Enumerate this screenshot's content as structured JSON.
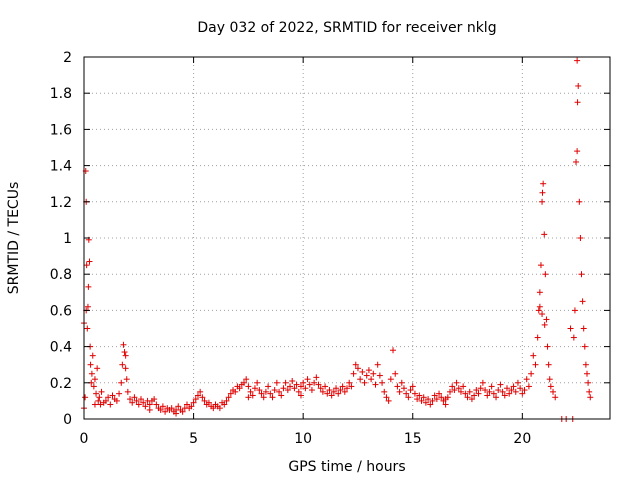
{
  "chart_data": {
    "type": "scatter",
    "title": "Day 032 of 2022, SRMTID for receiver nklg",
    "xlabel": "GPS time / hours",
    "ylabel": "SRMTID / TECUs",
    "xlim": [
      0,
      24
    ],
    "ylim": [
      0,
      2
    ],
    "xticks": [
      0,
      5,
      10,
      15,
      20
    ],
    "xtick_labels": [
      "0",
      "5",
      "10",
      "15",
      "20"
    ],
    "yticks": [
      0,
      0.2,
      0.4,
      0.6,
      0.8,
      1,
      1.2,
      1.4,
      1.6,
      1.8,
      2
    ],
    "ytick_labels": [
      "0",
      "0.2",
      "0.4",
      "0.6",
      "0.8",
      "1",
      "1.2",
      "1.4",
      "1.6",
      "1.8",
      "2"
    ],
    "grid": true,
    "marker": "+",
    "color": "#e00000",
    "series": [
      {
        "name": "SRMTID",
        "points": [
          [
            0.0,
            0.06
          ],
          [
            0.05,
            0.12
          ],
          [
            0.08,
            1.37
          ],
          [
            0.1,
            1.2
          ],
          [
            0.12,
            0.85
          ],
          [
            0.15,
            0.5
          ],
          [
            0.18,
            0.62
          ],
          [
            0.2,
            0.73
          ],
          [
            0.22,
            0.99
          ],
          [
            0.25,
            0.87
          ],
          [
            0.28,
            0.4
          ],
          [
            0.3,
            0.3
          ],
          [
            0.33,
            0.2
          ],
          [
            0.36,
            0.25
          ],
          [
            0.4,
            0.35
          ],
          [
            0.45,
            0.18
          ],
          [
            0.5,
            0.22
          ],
          [
            0.55,
            0.14
          ],
          [
            0.6,
            0.28
          ],
          [
            0.65,
            0.1
          ],
          [
            0.7,
            0.12
          ],
          [
            0.75,
            0.08
          ],
          [
            0.8,
            0.15
          ],
          [
            0.9,
            0.09
          ],
          [
            1.0,
            0.1
          ],
          [
            1.1,
            0.12
          ],
          [
            1.2,
            0.08
          ],
          [
            1.3,
            0.13
          ],
          [
            1.4,
            0.11
          ],
          [
            1.5,
            0.1
          ],
          [
            1.6,
            0.14
          ],
          [
            1.7,
            0.2
          ],
          [
            1.75,
            0.3
          ],
          [
            1.8,
            0.41
          ],
          [
            1.85,
            0.37
          ],
          [
            1.9,
            0.28
          ],
          [
            1.95,
            0.22
          ],
          [
            2.0,
            0.15
          ],
          [
            2.1,
            0.11
          ],
          [
            2.2,
            0.09
          ],
          [
            2.3,
            0.12
          ],
          [
            2.4,
            0.1
          ],
          [
            2.5,
            0.08
          ],
          [
            2.6,
            0.11
          ],
          [
            2.7,
            0.09
          ],
          [
            2.8,
            0.07
          ],
          [
            2.9,
            0.1
          ],
          [
            3.0,
            0.08
          ],
          [
            3.1,
            0.1
          ],
          [
            3.2,
            0.11
          ],
          [
            3.3,
            0.08
          ],
          [
            3.4,
            0.06
          ],
          [
            3.5,
            0.05
          ],
          [
            3.6,
            0.07
          ],
          [
            3.7,
            0.04
          ],
          [
            3.8,
            0.06
          ],
          [
            3.9,
            0.05
          ],
          [
            4.0,
            0.06
          ],
          [
            4.1,
            0.04
          ],
          [
            4.2,
            0.05
          ],
          [
            4.3,
            0.07
          ],
          [
            4.4,
            0.05
          ],
          [
            4.5,
            0.04
          ],
          [
            4.6,
            0.06
          ],
          [
            4.7,
            0.08
          ],
          [
            4.8,
            0.06
          ],
          [
            4.9,
            0.07
          ],
          [
            5.0,
            0.09
          ],
          [
            5.1,
            0.11
          ],
          [
            5.2,
            0.13
          ],
          [
            5.3,
            0.15
          ],
          [
            5.4,
            0.12
          ],
          [
            5.5,
            0.1
          ],
          [
            5.6,
            0.08
          ],
          [
            5.7,
            0.09
          ],
          [
            5.8,
            0.07
          ],
          [
            5.9,
            0.06
          ],
          [
            6.0,
            0.08
          ],
          [
            6.1,
            0.07
          ],
          [
            6.2,
            0.06
          ],
          [
            6.3,
            0.09
          ],
          [
            6.4,
            0.08
          ],
          [
            6.5,
            0.1
          ],
          [
            6.6,
            0.12
          ],
          [
            6.7,
            0.14
          ],
          [
            6.8,
            0.16
          ],
          [
            6.9,
            0.15
          ],
          [
            7.0,
            0.18
          ],
          [
            7.1,
            0.17
          ],
          [
            7.2,
            0.19
          ],
          [
            7.3,
            0.2
          ],
          [
            7.4,
            0.22
          ],
          [
            7.5,
            0.18
          ],
          [
            7.6,
            0.15
          ],
          [
            7.7,
            0.13
          ],
          [
            7.8,
            0.17
          ],
          [
            7.9,
            0.2
          ],
          [
            8.0,
            0.16
          ],
          [
            8.1,
            0.14
          ],
          [
            8.2,
            0.12
          ],
          [
            8.3,
            0.15
          ],
          [
            8.4,
            0.18
          ],
          [
            8.5,
            0.14
          ],
          [
            8.6,
            0.12
          ],
          [
            8.7,
            0.16
          ],
          [
            8.8,
            0.2
          ],
          [
            8.9,
            0.15
          ],
          [
            9.0,
            0.13
          ],
          [
            9.1,
            0.17
          ],
          [
            9.2,
            0.2
          ],
          [
            9.3,
            0.16
          ],
          [
            9.4,
            0.18
          ],
          [
            9.5,
            0.21
          ],
          [
            9.6,
            0.17
          ],
          [
            9.7,
            0.19
          ],
          [
            9.8,
            0.15
          ],
          [
            9.9,
            0.18
          ],
          [
            10.0,
            0.2
          ],
          [
            10.1,
            0.17
          ],
          [
            10.2,
            0.22
          ],
          [
            10.3,
            0.19
          ],
          [
            10.4,
            0.16
          ],
          [
            10.5,
            0.2
          ],
          [
            10.6,
            0.23
          ],
          [
            10.7,
            0.19
          ],
          [
            10.8,
            0.17
          ],
          [
            10.9,
            0.15
          ],
          [
            11.0,
            0.18
          ],
          [
            11.1,
            0.14
          ],
          [
            11.2,
            0.16
          ],
          [
            11.3,
            0.13
          ],
          [
            11.4,
            0.15
          ],
          [
            11.5,
            0.17
          ],
          [
            11.6,
            0.14
          ],
          [
            11.7,
            0.16
          ],
          [
            11.8,
            0.18
          ],
          [
            11.9,
            0.15
          ],
          [
            12.0,
            0.17
          ],
          [
            12.1,
            0.2
          ],
          [
            12.2,
            0.18
          ],
          [
            12.3,
            0.25
          ],
          [
            12.4,
            0.3
          ],
          [
            12.5,
            0.28
          ],
          [
            12.6,
            0.22
          ],
          [
            12.7,
            0.26
          ],
          [
            12.8,
            0.2
          ],
          [
            12.9,
            0.24
          ],
          [
            13.0,
            0.27
          ],
          [
            13.1,
            0.22
          ],
          [
            13.2,
            0.25
          ],
          [
            13.3,
            0.19
          ],
          [
            13.4,
            0.3
          ],
          [
            13.5,
            0.24
          ],
          [
            13.6,
            0.2
          ],
          [
            13.7,
            0.15
          ],
          [
            13.8,
            0.12
          ],
          [
            13.9,
            0.1
          ],
          [
            14.0,
            0.22
          ],
          [
            14.1,
            0.38
          ],
          [
            14.2,
            0.25
          ],
          [
            14.3,
            0.18
          ],
          [
            14.4,
            0.15
          ],
          [
            14.5,
            0.2
          ],
          [
            14.6,
            0.17
          ],
          [
            14.7,
            0.14
          ],
          [
            14.8,
            0.12
          ],
          [
            14.9,
            0.16
          ],
          [
            15.0,
            0.18
          ],
          [
            15.1,
            0.14
          ],
          [
            15.2,
            0.11
          ],
          [
            15.3,
            0.13
          ],
          [
            15.4,
            0.1
          ],
          [
            15.5,
            0.12
          ],
          [
            15.6,
            0.09
          ],
          [
            15.7,
            0.11
          ],
          [
            15.8,
            0.08
          ],
          [
            15.9,
            0.1
          ],
          [
            16.0,
            0.13
          ],
          [
            16.1,
            0.11
          ],
          [
            16.2,
            0.14
          ],
          [
            16.3,
            0.12
          ],
          [
            16.4,
            0.1
          ],
          [
            16.5,
            0.08
          ],
          [
            16.6,
            0.12
          ],
          [
            16.7,
            0.15
          ],
          [
            16.8,
            0.18
          ],
          [
            16.9,
            0.16
          ],
          [
            17.0,
            0.2
          ],
          [
            17.1,
            0.17
          ],
          [
            17.2,
            0.15
          ],
          [
            17.3,
            0.18
          ],
          [
            17.4,
            0.14
          ],
          [
            17.5,
            0.12
          ],
          [
            17.6,
            0.15
          ],
          [
            17.7,
            0.11
          ],
          [
            17.8,
            0.13
          ],
          [
            17.9,
            0.16
          ],
          [
            18.0,
            0.14
          ],
          [
            18.1,
            0.17
          ],
          [
            18.2,
            0.2
          ],
          [
            18.3,
            0.16
          ],
          [
            18.4,
            0.13
          ],
          [
            18.5,
            0.15
          ],
          [
            18.6,
            0.18
          ],
          [
            18.7,
            0.14
          ],
          [
            18.8,
            0.12
          ],
          [
            18.9,
            0.16
          ],
          [
            19.0,
            0.19
          ],
          [
            19.1,
            0.15
          ],
          [
            19.2,
            0.13
          ],
          [
            19.3,
            0.17
          ],
          [
            19.4,
            0.14
          ],
          [
            19.5,
            0.16
          ],
          [
            19.6,
            0.18
          ],
          [
            19.7,
            0.15
          ],
          [
            19.8,
            0.2
          ],
          [
            19.9,
            0.17
          ],
          [
            20.0,
            0.14
          ],
          [
            20.1,
            0.16
          ],
          [
            20.2,
            0.22
          ],
          [
            20.3,
            0.18
          ],
          [
            20.4,
            0.25
          ],
          [
            20.5,
            0.35
          ],
          [
            20.6,
            0.3
          ],
          [
            20.7,
            0.45
          ],
          [
            20.75,
            0.6
          ],
          [
            20.8,
            0.7
          ],
          [
            20.85,
            0.85
          ],
          [
            20.9,
            1.2
          ],
          [
            20.95,
            1.3
          ],
          [
            21.0,
            1.02
          ],
          [
            21.05,
            0.8
          ],
          [
            21.1,
            0.55
          ],
          [
            21.15,
            0.4
          ],
          [
            21.2,
            0.3
          ],
          [
            21.25,
            0.22
          ],
          [
            21.3,
            0.18
          ],
          [
            21.4,
            0.15
          ],
          [
            21.5,
            0.12
          ],
          [
            21.8,
            0.0
          ],
          [
            22.0,
            0.0
          ],
          [
            22.2,
            0.5
          ],
          [
            22.3,
            0.0
          ],
          [
            22.35,
            0.45
          ],
          [
            22.4,
            0.6
          ],
          [
            22.45,
            1.42
          ],
          [
            22.5,
            1.98
          ],
          [
            22.55,
            1.84
          ],
          [
            22.6,
            1.2
          ],
          [
            22.65,
            1.0
          ],
          [
            22.7,
            0.8
          ],
          [
            22.75,
            0.65
          ],
          [
            22.8,
            0.5
          ],
          [
            22.85,
            0.4
          ],
          [
            22.9,
            0.3
          ],
          [
            22.95,
            0.25
          ],
          [
            23.0,
            0.2
          ],
          [
            23.05,
            0.15
          ],
          [
            23.1,
            0.12
          ],
          [
            9.9,
            0.13
          ],
          [
            7.5,
            0.12
          ],
          [
            16.5,
            0.11
          ],
          [
            4.2,
            0.03
          ],
          [
            3.0,
            0.05
          ],
          [
            0.5,
            0.08
          ],
          [
            1.9,
            0.35
          ],
          [
            0.1,
            0.6
          ],
          [
            22.5,
            1.48
          ],
          [
            22.52,
            1.75
          ],
          [
            20.92,
            1.25
          ],
          [
            20.9,
            0.58
          ],
          [
            20.8,
            0.62
          ],
          [
            21.02,
            0.52
          ],
          [
            0.0,
            0.53
          ]
        ]
      }
    ]
  }
}
